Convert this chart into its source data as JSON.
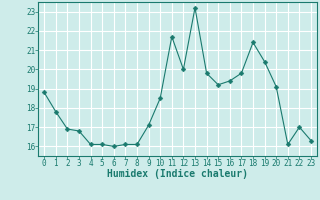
{
  "x": [
    0,
    1,
    2,
    3,
    4,
    5,
    6,
    7,
    8,
    9,
    10,
    11,
    12,
    13,
    14,
    15,
    16,
    17,
    18,
    19,
    20,
    21,
    22,
    23
  ],
  "y": [
    18.8,
    17.8,
    16.9,
    16.8,
    16.1,
    16.1,
    16.0,
    16.1,
    16.1,
    17.1,
    18.5,
    21.7,
    20.0,
    23.2,
    19.8,
    19.2,
    19.4,
    19.8,
    21.4,
    20.4,
    19.1,
    16.1,
    17.0,
    16.3
  ],
  "line_color": "#1a7a6e",
  "marker": "D",
  "marker_size": 2.5,
  "bg_color": "#ceecea",
  "plot_bg_color": "#ceecea",
  "grid_color": "#ffffff",
  "xlabel": "Humidex (Indice chaleur)",
  "ylim": [
    15.5,
    23.5
  ],
  "xlim": [
    -0.5,
    23.5
  ],
  "yticks": [
    16,
    17,
    18,
    19,
    20,
    21,
    22,
    23
  ],
  "xticks": [
    0,
    1,
    2,
    3,
    4,
    5,
    6,
    7,
    8,
    9,
    10,
    11,
    12,
    13,
    14,
    15,
    16,
    17,
    18,
    19,
    20,
    21,
    22,
    23
  ],
  "xtick_labels": [
    "0",
    "1",
    "2",
    "3",
    "4",
    "5",
    "6",
    "7",
    "8",
    "9",
    "10",
    "11",
    "12",
    "13",
    "14",
    "15",
    "16",
    "17",
    "18",
    "19",
    "20",
    "21",
    "22",
    "23"
  ],
  "axis_fontsize": 6.0,
  "tick_fontsize": 5.5,
  "xlabel_fontsize": 7.0
}
